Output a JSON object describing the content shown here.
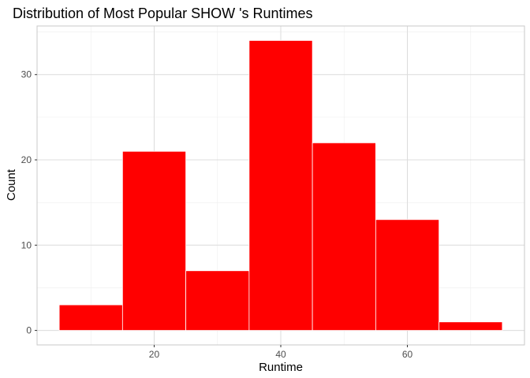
{
  "chart_data": {
    "type": "bar",
    "title": "Distribution of Most Popular SHOW 's Runtimes",
    "xlabel": "Runtime",
    "ylabel": "Count",
    "bins": [
      {
        "start": 5,
        "end": 15,
        "count": 3
      },
      {
        "start": 15,
        "end": 25,
        "count": 21
      },
      {
        "start": 25,
        "end": 35,
        "count": 7
      },
      {
        "start": 35,
        "end": 45,
        "count": 34
      },
      {
        "start": 45,
        "end": 55,
        "count": 22
      },
      {
        "start": 55,
        "end": 65,
        "count": 13
      },
      {
        "start": 65,
        "end": 75,
        "count": 1
      }
    ],
    "xlim": [
      1.5,
      78.5
    ],
    "ylim": [
      -1.7,
      35.7
    ],
    "xticks": [
      20,
      40,
      60
    ],
    "xtick_labels": [
      "20",
      "40",
      "60"
    ],
    "yticks": [
      0,
      10,
      20,
      30
    ],
    "ytick_labels": [
      "0",
      "10",
      "20",
      "30"
    ],
    "x_minor_ticks": [
      10,
      30,
      50,
      70
    ],
    "y_minor_ticks": [
      5,
      15,
      25,
      35
    ],
    "grid": true,
    "bar_color": "#ff0000"
  }
}
